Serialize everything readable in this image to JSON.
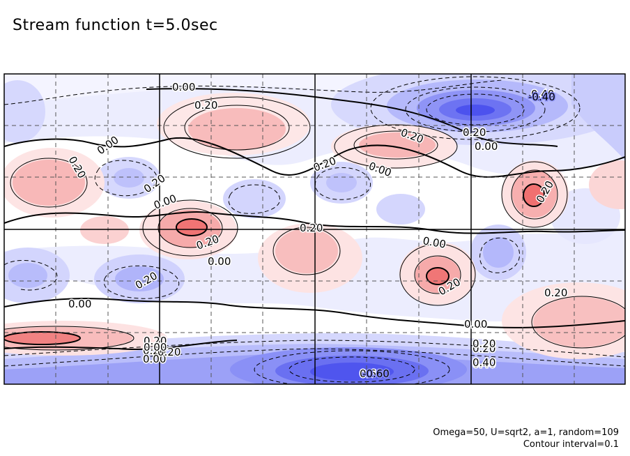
{
  "title": "Stream function t=5.0sec",
  "footer": {
    "params": "Omega=50, U=sqrt2, a=1, random=109",
    "interval": "Contour interval=0.1"
  },
  "chart_data": {
    "type": "contour",
    "variable": "Stream function",
    "time": "t=5.0sec",
    "contour_interval": 0.1,
    "positive_color": "#f07070",
    "negative_color": "#4848ee",
    "zero_line_color": "#000000",
    "grid": "dashed",
    "contour_labels": [
      "0.00",
      "0.20",
      "0.00",
      "0.20",
      "0.20",
      "0.00",
      "0.20",
      "0.00",
      "0.20",
      "0.40",
      "0.20",
      "0.00",
      "0.20",
      "0.20",
      "0.20",
      "0.00",
      "0.20",
      "0.00",
      "0.20",
      "0.00",
      "0.20",
      "0.00",
      "0.20",
      "0.20",
      "0.00",
      "0.20",
      "0.40",
      "0.60",
      "0.20",
      "0.00",
      "0.20",
      "0.40"
    ],
    "features": [
      {
        "sign": "negative",
        "peak": -0.6,
        "label": "-0.60"
      },
      {
        "sign": "negative",
        "peak": -0.5,
        "label": "-0.40"
      },
      {
        "sign": "positive",
        "peak": 0.4,
        "label": "0.20"
      },
      {
        "sign": "positive",
        "peak": 0.4,
        "label": "0.20"
      },
      {
        "sign": "positive",
        "peak": 0.35,
        "label": "0.20"
      },
      {
        "sign": "positive",
        "peak": 0.3,
        "label": "0.20"
      },
      {
        "sign": "positive",
        "peak": 0.3,
        "label": "0.20"
      },
      {
        "sign": "positive",
        "peak": 0.3,
        "label": "0.20"
      },
      {
        "sign": "positive",
        "peak": 0.3,
        "label": "0.20"
      }
    ]
  }
}
